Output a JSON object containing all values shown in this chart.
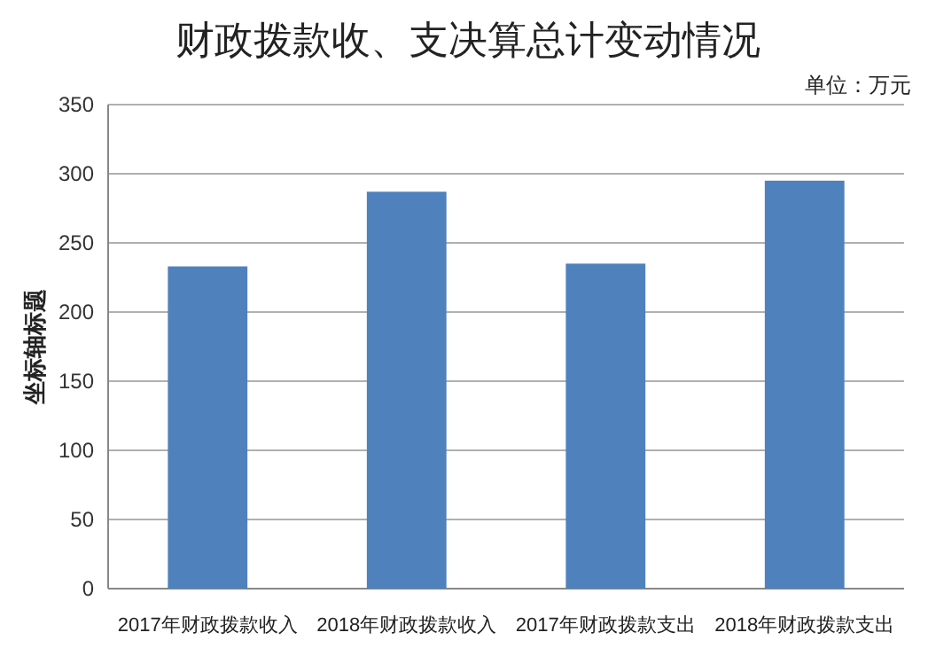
{
  "chart_data": {
    "type": "bar",
    "title": "财政拨款收、支决算总计变动情况",
    "ylabel": "坐标轴标题",
    "annotations": [
      "单位：万元"
    ],
    "categories": [
      "2017年财政拨款收入",
      "2018年财政拨款收入",
      "2017年财政拨款支出",
      "2018年财政拨款支出"
    ],
    "values": [
      233,
      287,
      235,
      295
    ],
    "color": "#4f81bd",
    "ylim": [
      0,
      350
    ],
    "yticks": [
      0,
      50,
      100,
      150,
      200,
      250,
      300,
      350
    ],
    "grid": "y"
  }
}
